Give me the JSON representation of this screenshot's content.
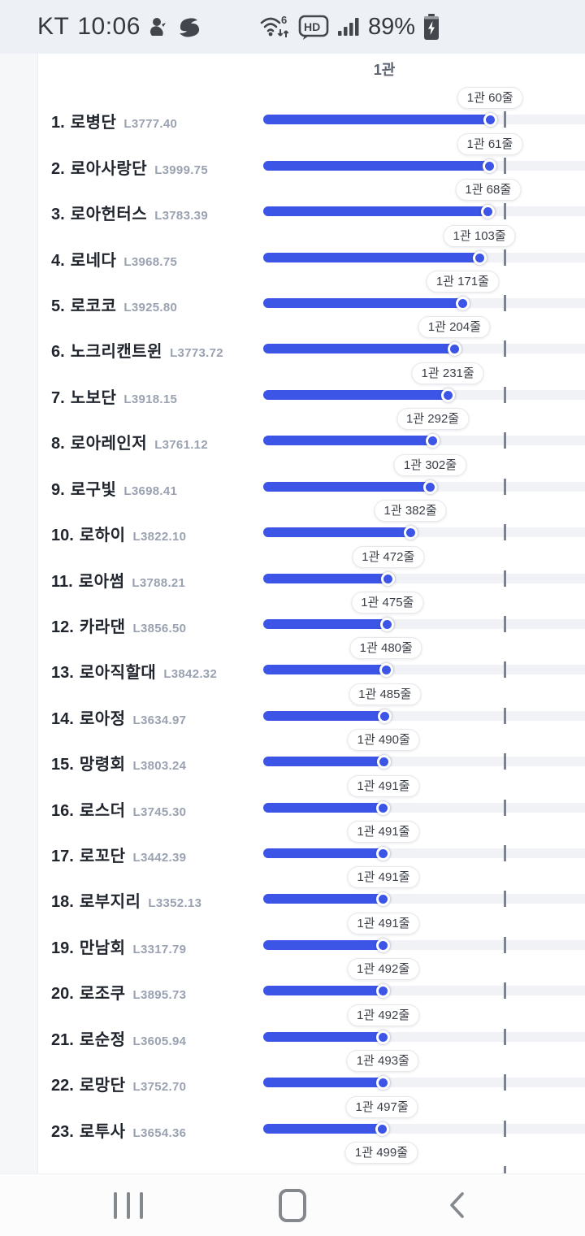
{
  "status_bar": {
    "carrier": "KT",
    "time": "10:06",
    "wifi_standard": "6",
    "hd_label": "HD",
    "battery_percent": "89%",
    "icons": [
      "notification-duck-icon",
      "notification-swirl-icon",
      "wifi-icon",
      "hd-voice-icon",
      "signal-strength-icon",
      "battery-charging-icon"
    ]
  },
  "colors": {
    "bar": "#3c55e6",
    "track": "#f1f2f6",
    "tick": "#7d828c",
    "status_icon": "#43464c"
  },
  "chart_data": {
    "type": "bar",
    "title": "1관",
    "value_unit": "줄",
    "legend_position": "none",
    "grid": "off",
    "note": "horizontal ranking bars; badge shows position as 1관 N줄; bar length decreases as N grows",
    "rows": [
      {
        "rank_label": "1.",
        "name": "로병단",
        "level": "L3777.40",
        "badge": "1관 60줄",
        "jul": 60,
        "partial": false
      },
      {
        "rank_label": "2.",
        "name": "로아사랑단",
        "level": "L3999.75",
        "badge": "1관 61줄",
        "jul": 61,
        "partial": false
      },
      {
        "rank_label": "3.",
        "name": "로아헌터스",
        "level": "L3783.39",
        "badge": "1관 68줄",
        "jul": 68,
        "partial": false
      },
      {
        "rank_label": "4.",
        "name": "로네다",
        "level": "L3968.75",
        "badge": "1관 103줄",
        "jul": 103,
        "partial": false
      },
      {
        "rank_label": "5.",
        "name": "로코코",
        "level": "L3925.80",
        "badge": "1관 171줄",
        "jul": 171,
        "partial": false
      },
      {
        "rank_label": "6.",
        "name": "노크리캔트윈",
        "level": "L3773.72",
        "badge": "1관 204줄",
        "jul": 204,
        "partial": false
      },
      {
        "rank_label": "7.",
        "name": "노보단",
        "level": "L3918.15",
        "badge": "1관 231줄",
        "jul": 231,
        "partial": false
      },
      {
        "rank_label": "8.",
        "name": "로아레인저",
        "level": "L3761.12",
        "badge": "1관 292줄",
        "jul": 292,
        "partial": false
      },
      {
        "rank_label": "9.",
        "name": "로구빛",
        "level": "L3698.41",
        "badge": "1관 302줄",
        "jul": 302,
        "partial": false
      },
      {
        "rank_label": "10.",
        "name": "로하이",
        "level": "L3822.10",
        "badge": "1관 382줄",
        "jul": 382,
        "partial": false
      },
      {
        "rank_label": "11.",
        "name": "로아썸",
        "level": "L3788.21",
        "badge": "1관 472줄",
        "jul": 472,
        "partial": false
      },
      {
        "rank_label": "12.",
        "name": "카라댄",
        "level": "L3856.50",
        "badge": "1관 475줄",
        "jul": 475,
        "partial": false
      },
      {
        "rank_label": "13.",
        "name": "로아직할대",
        "level": "L3842.32",
        "badge": "1관 480줄",
        "jul": 480,
        "partial": false
      },
      {
        "rank_label": "14.",
        "name": "로아정",
        "level": "L3634.97",
        "badge": "1관 485줄",
        "jul": 485,
        "partial": false
      },
      {
        "rank_label": "15.",
        "name": "망령회",
        "level": "L3803.24",
        "badge": "1관 490줄",
        "jul": 490,
        "partial": false
      },
      {
        "rank_label": "16.",
        "name": "로스더",
        "level": "L3745.30",
        "badge": "1관 491줄",
        "jul": 491,
        "partial": false
      },
      {
        "rank_label": "17.",
        "name": "로꼬단",
        "level": "L3442.39",
        "badge": "1관 491줄",
        "jul": 491,
        "partial": false
      },
      {
        "rank_label": "18.",
        "name": "로부지리",
        "level": "L3352.13",
        "badge": "1관 491줄",
        "jul": 491,
        "partial": false
      },
      {
        "rank_label": "19.",
        "name": "만남회",
        "level": "L3317.79",
        "badge": "1관 491줄",
        "jul": 491,
        "partial": false
      },
      {
        "rank_label": "20.",
        "name": "로조쿠",
        "level": "L3895.73",
        "badge": "1관 492줄",
        "jul": 492,
        "partial": false
      },
      {
        "rank_label": "21.",
        "name": "로순정",
        "level": "L3605.94",
        "badge": "1관 492줄",
        "jul": 492,
        "partial": false
      },
      {
        "rank_label": "22.",
        "name": "로망단",
        "level": "L3752.70",
        "badge": "1관 493줄",
        "jul": 493,
        "partial": false
      },
      {
        "rank_label": "23.",
        "name": "로투사",
        "level": "L3654.36",
        "badge": "1관 497줄",
        "jul": 497,
        "partial": false
      },
      {
        "rank_label": "",
        "name": "",
        "level": "",
        "badge": "1관 499줄",
        "jul": 499,
        "partial": true
      }
    ]
  }
}
